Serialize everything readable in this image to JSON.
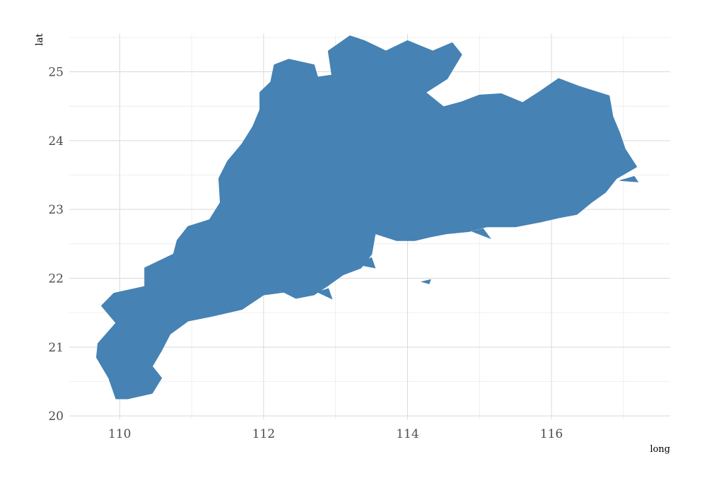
{
  "chart_data": {
    "type": "map",
    "xlabel": "long",
    "ylabel": "lat",
    "xlim": [
      109.3,
      117.65
    ],
    "ylim": [
      19.95,
      25.55
    ],
    "x_ticks": [
      110,
      112,
      114,
      116
    ],
    "x_tick_labels": [
      "110",
      "112",
      "114",
      "116"
    ],
    "y_ticks": [
      20,
      21,
      22,
      23,
      24,
      25
    ],
    "y_tick_labels": [
      "20",
      "21",
      "22",
      "23",
      "24",
      "25"
    ],
    "x_minor": [
      111,
      113,
      115,
      117
    ],
    "y_minor": [
      20.5,
      21.5,
      22.5,
      23.5,
      24.5,
      25.5
    ],
    "grid": true,
    "fill_color": "#4682B4",
    "region": {
      "name": "",
      "outline": [
        [
          110.11,
          20.25
        ],
        [
          110.45,
          20.33
        ],
        [
          110.58,
          20.55
        ],
        [
          110.45,
          20.72
        ],
        [
          110.58,
          20.95
        ],
        [
          110.7,
          21.19
        ],
        [
          110.95,
          21.38
        ],
        [
          111.28,
          21.45
        ],
        [
          111.7,
          21.55
        ],
        [
          112.0,
          21.76
        ],
        [
          112.28,
          21.8
        ],
        [
          112.45,
          21.71
        ],
        [
          112.7,
          21.76
        ],
        [
          112.9,
          21.9
        ],
        [
          113.1,
          22.05
        ],
        [
          113.35,
          22.15
        ],
        [
          113.5,
          22.35
        ],
        [
          113.55,
          22.65
        ],
        [
          113.85,
          22.55
        ],
        [
          114.1,
          22.55
        ],
        [
          114.3,
          22.6
        ],
        [
          114.55,
          22.65
        ],
        [
          114.85,
          22.68
        ],
        [
          115.1,
          22.75
        ],
        [
          115.5,
          22.75
        ],
        [
          115.85,
          22.82
        ],
        [
          116.1,
          22.88
        ],
        [
          116.35,
          22.93
        ],
        [
          116.55,
          23.1
        ],
        [
          116.75,
          23.25
        ],
        [
          116.9,
          23.45
        ],
        [
          117.18,
          23.62
        ],
        [
          117.02,
          23.88
        ],
        [
          116.95,
          24.1
        ],
        [
          116.85,
          24.35
        ],
        [
          116.8,
          24.65
        ],
        [
          116.4,
          24.78
        ],
        [
          116.1,
          24.9
        ],
        [
          115.85,
          24.72
        ],
        [
          115.6,
          24.55
        ],
        [
          115.3,
          24.68
        ],
        [
          115.0,
          24.66
        ],
        [
          114.75,
          24.56
        ],
        [
          114.5,
          24.49
        ],
        [
          114.25,
          24.7
        ],
        [
          114.55,
          24.9
        ],
        [
          114.75,
          25.25
        ],
        [
          114.62,
          25.42
        ],
        [
          114.35,
          25.3
        ],
        [
          114.0,
          25.45
        ],
        [
          113.7,
          25.3
        ],
        [
          113.4,
          25.45
        ],
        [
          113.2,
          25.52
        ],
        [
          112.9,
          25.3
        ],
        [
          112.95,
          24.95
        ],
        [
          112.75,
          24.92
        ],
        [
          112.7,
          25.1
        ],
        [
          112.35,
          25.18
        ],
        [
          112.15,
          25.1
        ],
        [
          112.1,
          24.85
        ],
        [
          111.95,
          24.7
        ],
        [
          111.95,
          24.45
        ],
        [
          111.85,
          24.2
        ],
        [
          111.7,
          23.95
        ],
        [
          111.5,
          23.7
        ],
        [
          111.38,
          23.45
        ],
        [
          111.4,
          23.1
        ],
        [
          111.25,
          22.85
        ],
        [
          110.95,
          22.75
        ],
        [
          110.8,
          22.55
        ],
        [
          110.75,
          22.35
        ],
        [
          110.35,
          22.15
        ],
        [
          110.35,
          21.88
        ],
        [
          109.92,
          21.78
        ],
        [
          109.75,
          21.6
        ],
        [
          109.95,
          21.35
        ],
        [
          109.7,
          21.05
        ],
        [
          109.68,
          20.85
        ],
        [
          109.85,
          20.55
        ],
        [
          109.95,
          20.25
        ]
      ],
      "islands": [
        [
          [
            114.9,
            22.68
          ],
          [
            115.15,
            22.58
          ],
          [
            115.05,
            22.72
          ]
        ],
        [
          [
            113.3,
            22.2
          ],
          [
            113.55,
            22.15
          ],
          [
            113.5,
            22.3
          ]
        ],
        [
          [
            112.75,
            21.8
          ],
          [
            112.95,
            21.7
          ],
          [
            112.9,
            21.85
          ]
        ],
        [
          [
            116.95,
            23.42
          ],
          [
            117.2,
            23.4
          ],
          [
            117.15,
            23.48
          ]
        ],
        [
          [
            114.2,
            21.95
          ],
          [
            114.3,
            21.92
          ],
          [
            114.32,
            21.98
          ]
        ]
      ]
    }
  }
}
